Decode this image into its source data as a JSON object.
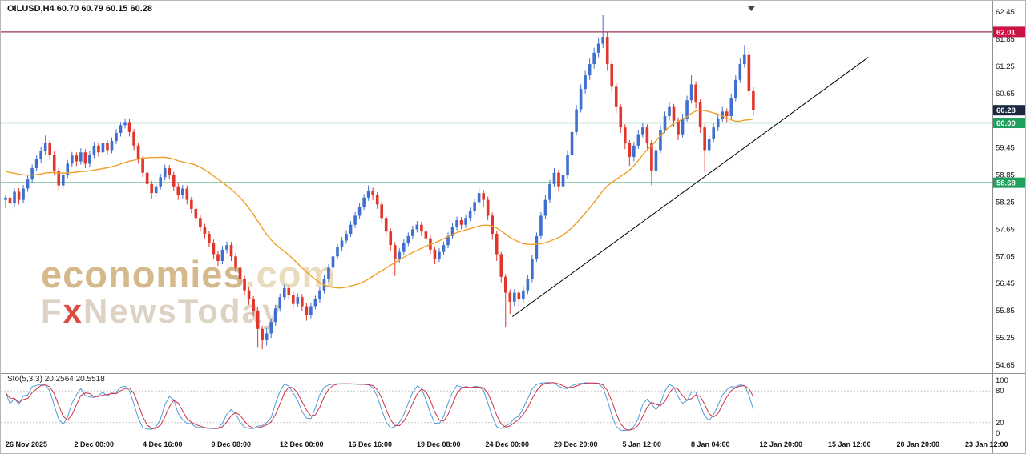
{
  "header": {
    "symbol_info": "OILUSD,H4 60.70 60.79 60.15 60.28"
  },
  "indicator_label": "Sto(5,3,3) 20.2564 20.5518",
  "watermark": {
    "brand_bold": "economies",
    "brand_suffix": ".com",
    "tagline_f": "F",
    "tagline_x": "x",
    "tagline_rest": "NewsToday"
  },
  "colors": {
    "background": "#ffffff",
    "bull": "#3f6fd0",
    "bear": "#e2352b",
    "axis_text": "#111111",
    "separator": "#8f8f8f",
    "badge_text": "#ffffff"
  },
  "chart_data": {
    "type": "candlestick",
    "title": "OILUSD H4 with Stochastic(5,3,3)",
    "symbol": "OILUSD",
    "timeframe": "H4",
    "last_ohlc": {
      "open": 60.7,
      "high": 60.79,
      "low": 60.15,
      "close": 60.28
    },
    "visible_price_range": [
      54.65,
      62.45
    ],
    "price_axis_ticks": [
      62.45,
      61.85,
      61.25,
      60.65,
      59.45,
      58.85,
      58.25,
      57.65,
      57.05,
      56.45,
      55.85,
      55.25,
      54.65
    ],
    "x_labels": [
      "26 Nov 2025",
      "2 Dec 00:00",
      "4 Dec 16:00",
      "9 Dec 08:00",
      "12 Dec 00:00",
      "16 Dec 16:00",
      "19 Dec 08:00",
      "24 Dec 00:00",
      "29 Dec 20:00",
      "5 Jan 12:00",
      "8 Jan 04:00",
      "12 Jan 20:00",
      "15 Jan 12:00",
      "20 Jan 20:00",
      "23 Jan 12:00"
    ],
    "horizontal_levels": [
      {
        "price": 62.01,
        "label": "62.01",
        "line_color": "#993355",
        "badge_color": "#cc1144"
      },
      {
        "price": 60.28,
        "label": "60.28",
        "line_color": "",
        "badge_color": "#1c2940"
      },
      {
        "price": 60.0,
        "label": "60.00",
        "line_color": "#2fa265",
        "badge_color": "#1fa05c"
      },
      {
        "price": 58.68,
        "label": "58.68",
        "line_color": "#2fa265",
        "badge_color": "#1fa05c"
      }
    ],
    "moving_average": {
      "type": "smoothed",
      "approx_period": 30,
      "seed": 58.95,
      "color": "#f0a028"
    },
    "trendline": {
      "from_frac": 0.516,
      "from_price": 55.72,
      "to_frac": 0.875,
      "to_price": 61.45,
      "color": "#000000"
    },
    "shift_marker": {
      "x_frac": 0.757
    },
    "indicator": {
      "name": "Stochastic",
      "params": [
        5,
        3,
        3
      ],
      "current_k": 20.2564,
      "current_d": 20.5518,
      "ticks": [
        100,
        80,
        20,
        0
      ],
      "dashed_levels": [
        80,
        20
      ],
      "k_color": "#4f9bd8",
      "d_color": "#cc3344"
    },
    "candles": [
      [
        58.3,
        58.42,
        58.12,
        58.35
      ],
      [
        58.35,
        58.44,
        58.1,
        58.22
      ],
      [
        58.22,
        58.55,
        58.15,
        58.48
      ],
      [
        58.48,
        58.56,
        58.2,
        58.3
      ],
      [
        58.3,
        58.63,
        58.24,
        58.55
      ],
      [
        58.55,
        58.84,
        58.48,
        58.75
      ],
      [
        58.75,
        59.08,
        58.68,
        59.0
      ],
      [
        59.0,
        59.28,
        58.93,
        59.2
      ],
      [
        59.2,
        59.46,
        59.12,
        59.38
      ],
      [
        59.38,
        59.72,
        59.3,
        59.55
      ],
      [
        59.55,
        59.62,
        59.18,
        59.3
      ],
      [
        59.3,
        59.38,
        58.85,
        58.95
      ],
      [
        58.95,
        59.02,
        58.5,
        58.62
      ],
      [
        58.62,
        58.93,
        58.55,
        58.85
      ],
      [
        58.85,
        59.18,
        58.78,
        59.1
      ],
      [
        59.1,
        59.36,
        59.03,
        59.28
      ],
      [
        59.28,
        59.35,
        59.05,
        59.15
      ],
      [
        59.15,
        59.44,
        59.08,
        59.35
      ],
      [
        59.35,
        59.42,
        59.0,
        59.1
      ],
      [
        59.1,
        59.38,
        59.02,
        59.3
      ],
      [
        59.3,
        59.58,
        59.22,
        59.5
      ],
      [
        59.5,
        59.57,
        59.25,
        59.35
      ],
      [
        59.35,
        59.63,
        59.28,
        59.55
      ],
      [
        59.55,
        59.62,
        59.3,
        59.4
      ],
      [
        59.4,
        59.68,
        59.33,
        59.6
      ],
      [
        59.6,
        59.86,
        59.53,
        59.78
      ],
      [
        59.78,
        60.02,
        59.7,
        59.95
      ],
      [
        59.95,
        60.1,
        59.88,
        60.02
      ],
      [
        60.02,
        60.08,
        59.7,
        59.8
      ],
      [
        59.8,
        59.87,
        59.4,
        59.5
      ],
      [
        59.5,
        59.56,
        59.1,
        59.2
      ],
      [
        59.2,
        59.27,
        58.8,
        58.9
      ],
      [
        58.9,
        58.97,
        58.55,
        58.65
      ],
      [
        58.65,
        58.72,
        58.33,
        58.45
      ],
      [
        58.45,
        58.68,
        58.38,
        58.6
      ],
      [
        58.6,
        58.88,
        58.53,
        58.8
      ],
      [
        58.8,
        59.08,
        58.73,
        59.0
      ],
      [
        59.0,
        59.07,
        58.75,
        58.85
      ],
      [
        58.85,
        58.92,
        58.5,
        58.6
      ],
      [
        58.6,
        58.67,
        58.3,
        58.4
      ],
      [
        58.4,
        58.63,
        58.33,
        58.55
      ],
      [
        58.55,
        58.62,
        58.2,
        58.3
      ],
      [
        58.3,
        58.37,
        58.0,
        58.1
      ],
      [
        58.1,
        58.17,
        57.8,
        57.9
      ],
      [
        57.9,
        57.97,
        57.6,
        57.7
      ],
      [
        57.7,
        57.77,
        57.45,
        57.55
      ],
      [
        57.55,
        57.62,
        57.25,
        57.35
      ],
      [
        57.35,
        57.42,
        57.0,
        57.1
      ],
      [
        57.1,
        57.17,
        56.84,
        56.95
      ],
      [
        56.95,
        57.28,
        56.88,
        57.2
      ],
      [
        57.2,
        57.38,
        57.12,
        57.3
      ],
      [
        57.3,
        57.37,
        56.95,
        57.05
      ],
      [
        57.05,
        57.12,
        56.7,
        56.8
      ],
      [
        56.8,
        56.87,
        56.45,
        56.55
      ],
      [
        56.55,
        56.62,
        56.2,
        56.3
      ],
      [
        56.3,
        56.37,
        55.98,
        56.1
      ],
      [
        56.1,
        56.17,
        55.72,
        55.85
      ],
      [
        55.85,
        55.92,
        55.05,
        55.45
      ],
      [
        55.45,
        55.52,
        55.0,
        55.2
      ],
      [
        55.2,
        55.47,
        55.08,
        55.35
      ],
      [
        55.35,
        55.68,
        55.25,
        55.6
      ],
      [
        55.6,
        55.98,
        55.52,
        55.9
      ],
      [
        55.9,
        56.23,
        55.83,
        56.15
      ],
      [
        56.15,
        56.43,
        56.08,
        56.35
      ],
      [
        56.35,
        56.42,
        56.1,
        56.2
      ],
      [
        56.2,
        56.27,
        55.9,
        56.0
      ],
      [
        56.0,
        56.23,
        55.93,
        56.15
      ],
      [
        56.15,
        56.22,
        55.85,
        55.95
      ],
      [
        55.95,
        56.02,
        55.63,
        55.75
      ],
      [
        55.75,
        56.03,
        55.68,
        55.95
      ],
      [
        55.95,
        56.18,
        55.88,
        56.1
      ],
      [
        56.1,
        56.38,
        56.03,
        56.3
      ],
      [
        56.3,
        56.63,
        56.23,
        56.55
      ],
      [
        56.55,
        56.88,
        56.48,
        56.8
      ],
      [
        56.8,
        57.13,
        56.73,
        57.05
      ],
      [
        57.05,
        57.33,
        56.98,
        57.25
      ],
      [
        57.25,
        57.48,
        57.18,
        57.4
      ],
      [
        57.4,
        57.63,
        57.33,
        57.55
      ],
      [
        57.55,
        57.83,
        57.48,
        57.75
      ],
      [
        57.75,
        58.03,
        57.68,
        57.95
      ],
      [
        57.95,
        58.23,
        57.88,
        58.15
      ],
      [
        58.15,
        58.43,
        58.08,
        58.35
      ],
      [
        58.35,
        58.62,
        58.28,
        58.5
      ],
      [
        58.5,
        58.57,
        58.3,
        58.4
      ],
      [
        58.4,
        58.47,
        58.1,
        58.2
      ],
      [
        58.2,
        58.27,
        57.8,
        57.9
      ],
      [
        57.9,
        57.97,
        57.5,
        57.6
      ],
      [
        57.6,
        57.67,
        57.18,
        57.3
      ],
      [
        57.3,
        57.37,
        56.62,
        57.0
      ],
      [
        57.0,
        57.23,
        56.9,
        57.15
      ],
      [
        57.15,
        57.43,
        57.08,
        57.35
      ],
      [
        57.35,
        57.58,
        57.28,
        57.5
      ],
      [
        57.5,
        57.73,
        57.43,
        57.65
      ],
      [
        57.65,
        57.83,
        57.58,
        57.75
      ],
      [
        57.75,
        57.82,
        57.5,
        57.6
      ],
      [
        57.6,
        57.67,
        57.35,
        57.45
      ],
      [
        57.45,
        57.52,
        57.1,
        57.2
      ],
      [
        57.2,
        57.27,
        56.88,
        57.0
      ],
      [
        57.0,
        57.23,
        56.93,
        57.15
      ],
      [
        57.15,
        57.38,
        57.08,
        57.3
      ],
      [
        57.3,
        57.58,
        57.23,
        57.5
      ],
      [
        57.5,
        57.78,
        57.43,
        57.7
      ],
      [
        57.7,
        57.93,
        57.63,
        57.85
      ],
      [
        57.85,
        57.92,
        57.65,
        57.75
      ],
      [
        57.75,
        57.98,
        57.68,
        57.9
      ],
      [
        57.9,
        58.13,
        57.83,
        58.05
      ],
      [
        58.05,
        58.33,
        57.98,
        58.25
      ],
      [
        58.25,
        58.58,
        58.18,
        58.45
      ],
      [
        58.45,
        58.52,
        58.15,
        58.3
      ],
      [
        58.3,
        58.37,
        57.85,
        57.95
      ],
      [
        57.95,
        58.02,
        57.42,
        57.55
      ],
      [
        57.55,
        57.62,
        56.95,
        57.1
      ],
      [
        57.1,
        57.15,
        56.48,
        56.6
      ],
      [
        56.6,
        56.66,
        55.48,
        56.25
      ],
      [
        56.25,
        56.32,
        55.78,
        56.05
      ],
      [
        56.05,
        56.33,
        55.95,
        56.25
      ],
      [
        56.25,
        56.32,
        55.92,
        56.1
      ],
      [
        56.1,
        56.4,
        56.02,
        56.3
      ],
      [
        56.3,
        56.65,
        56.22,
        56.55
      ],
      [
        56.55,
        57.08,
        56.48,
        57.0
      ],
      [
        57.0,
        57.58,
        56.93,
        57.5
      ],
      [
        57.5,
        58.03,
        57.43,
        57.95
      ],
      [
        57.95,
        58.4,
        57.88,
        58.3
      ],
      [
        58.3,
        58.74,
        58.23,
        58.65
      ],
      [
        58.65,
        59.0,
        58.58,
        58.9
      ],
      [
        58.9,
        58.97,
        58.48,
        58.6
      ],
      [
        58.6,
        58.95,
        58.52,
        58.85
      ],
      [
        58.85,
        59.4,
        58.78,
        59.3
      ],
      [
        59.3,
        59.9,
        59.23,
        59.8
      ],
      [
        59.8,
        60.4,
        59.73,
        60.3
      ],
      [
        60.3,
        60.85,
        60.23,
        60.75
      ],
      [
        60.75,
        61.15,
        60.65,
        61.05
      ],
      [
        61.05,
        61.42,
        60.95,
        61.3
      ],
      [
        61.3,
        61.66,
        61.2,
        61.55
      ],
      [
        61.55,
        61.88,
        61.45,
        61.75
      ],
      [
        61.75,
        62.38,
        61.65,
        61.9
      ],
      [
        61.9,
        62.0,
        61.15,
        61.3
      ],
      [
        61.3,
        61.38,
        60.68,
        60.8
      ],
      [
        60.8,
        60.88,
        60.22,
        60.35
      ],
      [
        60.35,
        60.42,
        59.78,
        59.9
      ],
      [
        59.9,
        59.97,
        59.42,
        59.55
      ],
      [
        59.55,
        59.62,
        59.05,
        59.25
      ],
      [
        59.25,
        59.58,
        59.15,
        59.5
      ],
      [
        59.5,
        59.85,
        59.43,
        59.75
      ],
      [
        59.75,
        60.0,
        59.68,
        59.9
      ],
      [
        59.9,
        59.97,
        59.43,
        59.55
      ],
      [
        59.55,
        59.62,
        58.62,
        58.95
      ],
      [
        58.95,
        59.5,
        58.88,
        59.4
      ],
      [
        59.4,
        59.95,
        59.33,
        59.85
      ],
      [
        59.85,
        60.25,
        59.78,
        60.15
      ],
      [
        60.15,
        60.45,
        60.05,
        60.35
      ],
      [
        60.35,
        60.42,
        59.92,
        60.05
      ],
      [
        60.05,
        60.12,
        59.62,
        59.75
      ],
      [
        59.75,
        60.2,
        59.68,
        60.1
      ],
      [
        60.1,
        60.6,
        60.03,
        60.5
      ],
      [
        60.5,
        61.05,
        60.43,
        60.85
      ],
      [
        60.85,
        60.92,
        60.32,
        60.45
      ],
      [
        60.45,
        60.52,
        59.78,
        59.9
      ],
      [
        59.9,
        59.97,
        58.92,
        59.4
      ],
      [
        59.4,
        59.75,
        59.32,
        59.65
      ],
      [
        59.65,
        60.0,
        59.58,
        59.9
      ],
      [
        59.9,
        60.2,
        59.83,
        60.1
      ],
      [
        60.1,
        60.35,
        60.03,
        60.25
      ],
      [
        60.25,
        60.32,
        60.02,
        60.15
      ],
      [
        60.15,
        60.65,
        60.08,
        60.55
      ],
      [
        60.55,
        61.05,
        60.48,
        60.95
      ],
      [
        60.95,
        61.42,
        60.88,
        61.3
      ],
      [
        61.3,
        61.72,
        61.22,
        61.5
      ],
      [
        61.5,
        61.58,
        60.62,
        60.7
      ],
      [
        60.7,
        60.79,
        60.15,
        60.28
      ]
    ]
  }
}
